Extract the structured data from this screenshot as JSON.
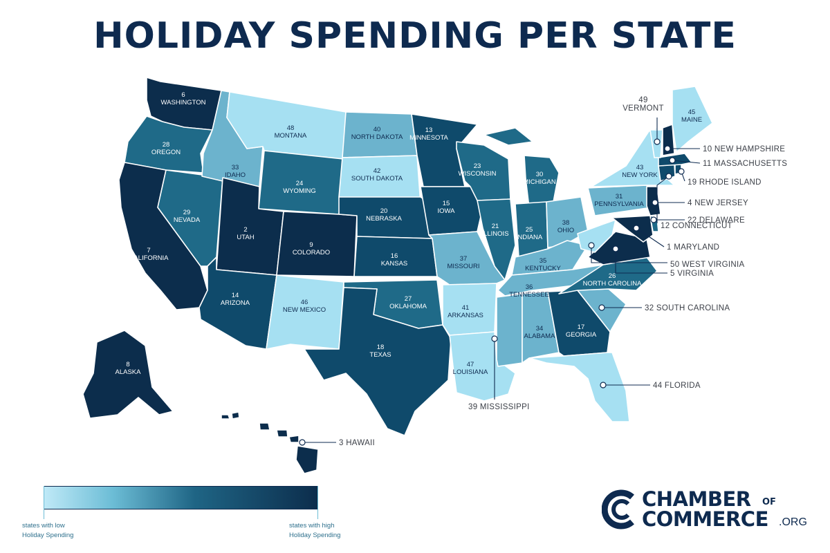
{
  "title": "HOLIDAY SPENDING PER STATE",
  "colors": {
    "title": "#0e2a4f",
    "rank_1_10": "#0c2d4c",
    "rank_11_20": "#0f4a6b",
    "rank_21_30": "#1f6a88",
    "rank_31_40": "#6cb3cd",
    "rank_41_50": "#a6e0f2",
    "legend_low": "#bfe9f7",
    "legend_high": "#0c2d4c"
  },
  "states": [
    {
      "rank": "1",
      "name": "MARYLAND"
    },
    {
      "rank": "2",
      "name": "UTAH"
    },
    {
      "rank": "3",
      "name": "HAWAII"
    },
    {
      "rank": "4",
      "name": "NEW JERSEY"
    },
    {
      "rank": "5",
      "name": "VIRGINIA"
    },
    {
      "rank": "6",
      "name": "WASHINGTON"
    },
    {
      "rank": "7",
      "name": "CALIFORNIA"
    },
    {
      "rank": "8",
      "name": "ALASKA"
    },
    {
      "rank": "9",
      "name": "COLORADO"
    },
    {
      "rank": "10",
      "name": "NEW HAMPSHIRE"
    },
    {
      "rank": "11",
      "name": "MASSACHUSETTS"
    },
    {
      "rank": "12",
      "name": "CONNECTICUT"
    },
    {
      "rank": "13",
      "name": "MINNESOTA"
    },
    {
      "rank": "14",
      "name": "ARIZONA"
    },
    {
      "rank": "15",
      "name": "IOWA"
    },
    {
      "rank": "16",
      "name": "KANSAS"
    },
    {
      "rank": "17",
      "name": "GEORGIA"
    },
    {
      "rank": "18",
      "name": "TEXAS"
    },
    {
      "rank": "19",
      "name": "RHODE ISLAND"
    },
    {
      "rank": "20",
      "name": "NEBRASKA"
    },
    {
      "rank": "21",
      "name": "ILLINOIS"
    },
    {
      "rank": "22",
      "name": "DELAWARE"
    },
    {
      "rank": "23",
      "name": "WISCONSIN"
    },
    {
      "rank": "24",
      "name": "WYOMING"
    },
    {
      "rank": "25",
      "name": "INDIANA"
    },
    {
      "rank": "26",
      "name": "NORTH CAROLINA"
    },
    {
      "rank": "27",
      "name": "OKLAHOMA"
    },
    {
      "rank": "28",
      "name": "OREGON"
    },
    {
      "rank": "29",
      "name": "NEVADA"
    },
    {
      "rank": "30",
      "name": "MICHIGAN"
    },
    {
      "rank": "31",
      "name": "PENNSYLVANIA"
    },
    {
      "rank": "32",
      "name": "SOUTH CAROLINA"
    },
    {
      "rank": "33",
      "name": "IDAHO"
    },
    {
      "rank": "34",
      "name": "ALABAMA"
    },
    {
      "rank": "35",
      "name": "KENTUCKY"
    },
    {
      "rank": "36",
      "name": "TENNESSEE"
    },
    {
      "rank": "37",
      "name": "MISSOURI"
    },
    {
      "rank": "38",
      "name": "OHIO"
    },
    {
      "rank": "39",
      "name": "MISSISSIPPI"
    },
    {
      "rank": "40",
      "name": "NORTH DAKOTA"
    },
    {
      "rank": "41",
      "name": "ARKANSAS"
    },
    {
      "rank": "42",
      "name": "SOUTH DAKOTA"
    },
    {
      "rank": "43",
      "name": "NEW YORK"
    },
    {
      "rank": "44",
      "name": "FLORIDA"
    },
    {
      "rank": "45",
      "name": "MAINE"
    },
    {
      "rank": "46",
      "name": "NEW MEXICO"
    },
    {
      "rank": "47",
      "name": "LOUISIANA"
    },
    {
      "rank": "48",
      "name": "MONTANA"
    },
    {
      "rank": "49",
      "name": "VERMONT"
    },
    {
      "rank": "50",
      "name": "WEST VIRGINIA"
    }
  ],
  "legend": {
    "low_line1": "states with low",
    "low_line2": "Holiday Spending",
    "high_line1": "states with high",
    "high_line2": "Holiday Spending"
  },
  "logo": {
    "line1": "CHAMBER",
    "of": "OF",
    "line2": "COMMERCE",
    "suffix": ".ORG"
  }
}
